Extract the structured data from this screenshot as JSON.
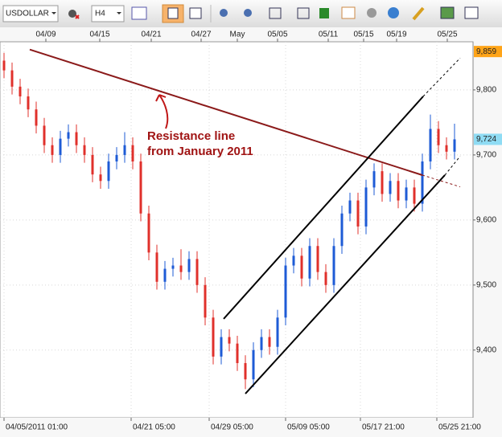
{
  "toolbar": {
    "symbol": "USDOLLAR",
    "timeframe": "H4"
  },
  "chart_data": {
    "type": "candlestick",
    "annotations": [
      "Resistance line",
      "from January 2011"
    ],
    "up_color": "#1e5bd6",
    "down_color": "#e0302b",
    "grid": true,
    "x": [
      0,
      1,
      2,
      3,
      4,
      5,
      6,
      7,
      8,
      9,
      10,
      11,
      12,
      13,
      14,
      15,
      16,
      17,
      18,
      19,
      20,
      21,
      22,
      23,
      24,
      25,
      26,
      27,
      28,
      29,
      30,
      31,
      32,
      33,
      34,
      35,
      36,
      37,
      38,
      39,
      40,
      41,
      42,
      43,
      44,
      45,
      46,
      47,
      48,
      49,
      50,
      51,
      52,
      53,
      54,
      55,
      56
    ],
    "open": [
      9845,
      9830,
      9805,
      9790,
      9770,
      9745,
      9715,
      9700,
      9725,
      9735,
      9715,
      9700,
      9670,
      9660,
      9690,
      9700,
      9715,
      9690,
      9610,
      9550,
      9505,
      9525,
      9530,
      9520,
      9540,
      9500,
      9450,
      9390,
      9420,
      9410,
      9380,
      9355,
      9400,
      9420,
      9405,
      9450,
      9530,
      9545,
      9510,
      9560,
      9520,
      9500,
      9560,
      9610,
      9630,
      9590,
      9650,
      9675,
      9640,
      9660,
      9630,
      9650,
      9625,
      9690,
      9740,
      9715,
      9705
    ],
    "high": [
      9857,
      9842,
      9817,
      9802,
      9782,
      9757,
      9727,
      9737,
      9747,
      9747,
      9727,
      9712,
      9682,
      9702,
      9712,
      9735,
      9727,
      9702,
      9622,
      9562,
      9537,
      9542,
      9555,
      9552,
      9552,
      9512,
      9462,
      9432,
      9432,
      9422,
      9392,
      9412,
      9432,
      9432,
      9462,
      9542,
      9557,
      9557,
      9572,
      9572,
      9532,
      9572,
      9622,
      9642,
      9642,
      9662,
      9687,
      9687,
      9672,
      9672,
      9662,
      9662,
      9702,
      9762,
      9752,
      9727,
      9748
    ],
    "low": [
      9818,
      9793,
      9778,
      9758,
      9733,
      9703,
      9688,
      9688,
      9713,
      9703,
      9688,
      9658,
      9648,
      9648,
      9678,
      9688,
      9678,
      9598,
      9538,
      9493,
      9493,
      9513,
      9508,
      9508,
      9488,
      9438,
      9378,
      9378,
      9398,
      9368,
      9340,
      9343,
      9388,
      9393,
      9393,
      9438,
      9518,
      9498,
      9498,
      9508,
      9488,
      9488,
      9548,
      9598,
      9578,
      9578,
      9638,
      9628,
      9628,
      9618,
      9618,
      9613,
      9613,
      9678,
      9703,
      9693,
      9693
    ],
    "close": [
      9830,
      9805,
      9790,
      9770,
      9745,
      9715,
      9700,
      9725,
      9735,
      9715,
      9700,
      9670,
      9660,
      9690,
      9700,
      9715,
      9690,
      9610,
      9550,
      9505,
      9525,
      9530,
      9520,
      9540,
      9500,
      9450,
      9390,
      9420,
      9410,
      9380,
      9355,
      9400,
      9420,
      9405,
      9450,
      9530,
      9545,
      9510,
      9560,
      9520,
      9500,
      9560,
      9610,
      9630,
      9590,
      9650,
      9675,
      9640,
      9660,
      9630,
      9650,
      9625,
      9690,
      9740,
      9715,
      9705,
      9724
    ],
    "xlim": [
      -0.5,
      58.3
    ],
    "ylim": [
      9296,
      9874
    ],
    "yticks": [
      {
        "value": 9400,
        "label": "9,400"
      },
      {
        "value": 9500,
        "label": "9,500"
      },
      {
        "value": 9600,
        "label": "9,600"
      },
      {
        "value": 9700,
        "label": "9,700"
      },
      {
        "value": 9800,
        "label": "9,800"
      }
    ],
    "xticks": [
      {
        "value": 5.2,
        "label": "04/09"
      },
      {
        "value": 11.9,
        "label": "04/15"
      },
      {
        "value": 18.3,
        "label": "04/21"
      },
      {
        "value": 24.5,
        "label": "04/27"
      },
      {
        "value": 29,
        "label": "May"
      },
      {
        "value": 34,
        "label": "05/05"
      },
      {
        "value": 40.3,
        "label": "05/11"
      },
      {
        "value": 44.7,
        "label": "05/15"
      },
      {
        "value": 48.8,
        "label": "05/19"
      },
      {
        "value": 55.1,
        "label": "05/25"
      }
    ],
    "bottom_xticks": [
      {
        "value": 0,
        "label": "04/05/2011 01:00"
      },
      {
        "value": 15.8,
        "label": "04/21 05:00"
      },
      {
        "value": 25.5,
        "label": "04/29 05:00"
      },
      {
        "value": 35,
        "label": "05/09 05:00"
      },
      {
        "value": 44.3,
        "label": "05/17 21:00"
      },
      {
        "value": 53.8,
        "label": "05/25 21:00"
      }
    ],
    "price_labels": [
      {
        "value": 9859,
        "label": "9,859",
        "color": "#ffa418"
      },
      {
        "value": 9724,
        "label": "9,724",
        "color": "#8fdcf4"
      }
    ],
    "trendlines": [
      {
        "color": "#8b1a1a",
        "x": [
          3.2,
          52,
          56.7
        ],
        "y": [
          9862,
          9669,
          9651
        ]
      },
      {
        "color": "#000000",
        "x": [
          27.3,
          52.1,
          56.7
        ],
        "y": [
          9448,
          9790,
          9849
        ]
      },
      {
        "color": "#000000",
        "x": [
          30,
          54.8,
          56.7
        ],
        "y": [
          9333,
          9669,
          9698
        ]
      }
    ]
  }
}
